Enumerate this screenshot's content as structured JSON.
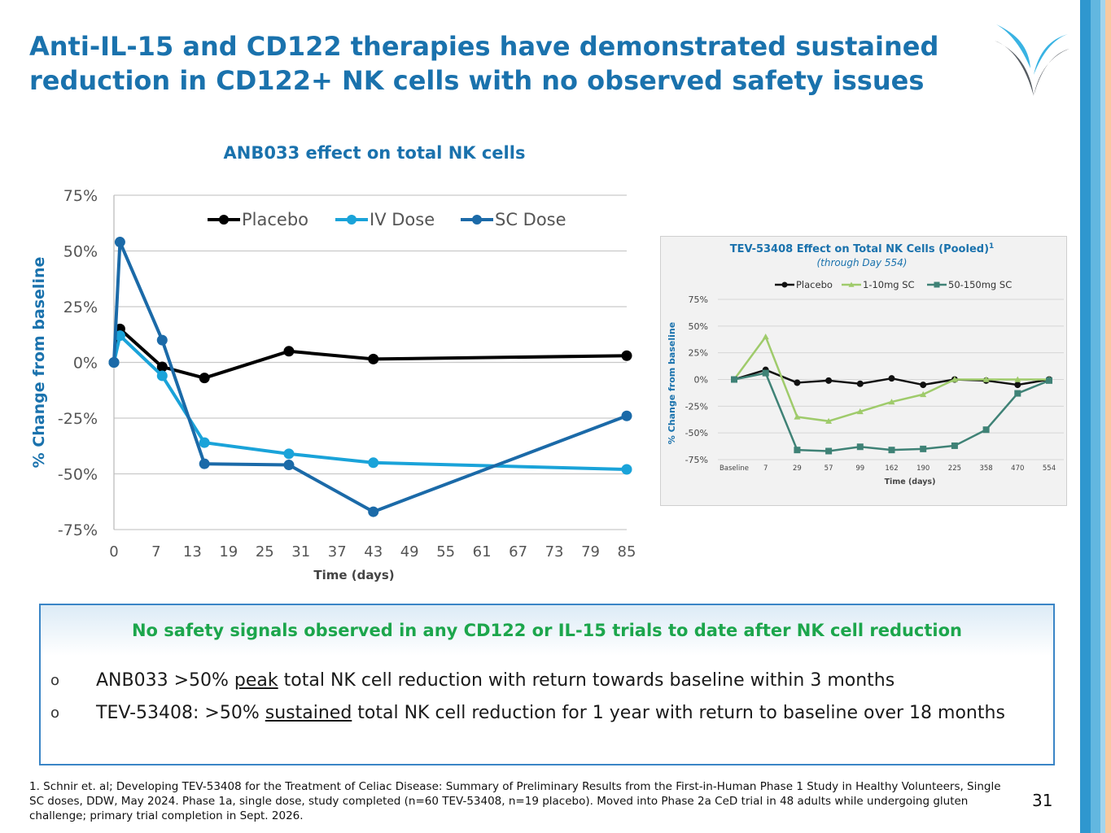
{
  "slide": {
    "title": "Anti-IL-15 and CD122 therapies have demonstrated sustained reduction in CD122+ NK cells with no observed safety issues",
    "page_number": "31",
    "accent_colors": [
      "#1a72ad",
      "#3a9fd6",
      "#8fcbe8",
      "#f8c9a0"
    ],
    "logo_icon": "stylized-v-logo-icon"
  },
  "chart_data": [
    {
      "type": "line",
      "title": "ANB033 effect on total NK cells",
      "xlabel": "Time (days)",
      "ylabel": "% Change from baseline",
      "xlim": [
        0,
        85
      ],
      "ylim": [
        -0.75,
        0.75
      ],
      "x_ticks": [
        0,
        7,
        13,
        19,
        25,
        31,
        37,
        43,
        49,
        55,
        61,
        67,
        73,
        79,
        85
      ],
      "y_ticks": [
        0.75,
        0.5,
        0.25,
        0,
        -0.25,
        -0.5,
        -0.75
      ],
      "y_tick_labels": [
        "75%",
        "50%",
        "25%",
        "0%",
        "-25%",
        "-50%",
        "-75%"
      ],
      "grid": "horizontal",
      "legend": "top",
      "series": [
        {
          "name": "Placebo",
          "color": "#000000",
          "x": [
            0,
            1,
            8,
            15,
            29,
            43,
            85
          ],
          "y": [
            0,
            0.15,
            -0.02,
            -0.07,
            0.05,
            0.015,
            0.03
          ]
        },
        {
          "name": "IV Dose",
          "color": "#1aa3d9",
          "x": [
            0,
            1,
            8,
            15,
            29,
            43,
            85
          ],
          "y": [
            0,
            0.12,
            -0.06,
            -0.36,
            -0.41,
            -0.45,
            -0.48
          ]
        },
        {
          "name": "SC Dose",
          "color": "#1b6aa8",
          "x": [
            0,
            1,
            8,
            15,
            29,
            43,
            85
          ],
          "y": [
            0,
            0.54,
            0.1,
            -0.455,
            -0.46,
            -0.67,
            -0.24
          ]
        }
      ]
    },
    {
      "type": "line",
      "title": "TEV-53408 Effect on Total NK Cells (Pooled)",
      "title_superscript": "1",
      "subtitle": "(through Day 554)",
      "xlabel": "Time (days)",
      "ylabel": "% Change from baseline",
      "categories": [
        "Baseline",
        "7",
        "29",
        "57",
        "99",
        "162",
        "190",
        "225",
        "358",
        "470",
        "554"
      ],
      "ylim": [
        -0.75,
        0.75
      ],
      "y_ticks": [
        0.75,
        0.5,
        0.25,
        0,
        -0.25,
        -0.5,
        -0.75
      ],
      "y_tick_labels": [
        "75%",
        "50%",
        "25%",
        "0%",
        "-25%",
        "-50%",
        "-75%"
      ],
      "grid": "horizontal",
      "legend": "top",
      "series": [
        {
          "name": "Placebo",
          "color": "#111111",
          "marker": "circle",
          "values": [
            0,
            0.09,
            -0.03,
            -0.01,
            -0.04,
            0.01,
            -0.05,
            0,
            -0.01,
            -0.05,
            0
          ]
        },
        {
          "name": "1-10mg SC",
          "color": "#9fcb6b",
          "marker": "triangle",
          "values": [
            0,
            0.4,
            -0.35,
            -0.39,
            -0.3,
            -0.21,
            -0.14,
            0,
            0,
            0,
            0
          ]
        },
        {
          "name": "50-150mg SC",
          "color": "#3f8276",
          "marker": "square",
          "values": [
            0,
            0.06,
            -0.66,
            -0.67,
            -0.63,
            -0.66,
            -0.65,
            -0.62,
            -0.47,
            -0.13,
            -0.01
          ]
        }
      ]
    }
  ],
  "callout": {
    "title": "No safety signals observed in any CD122 or IL-15 trials to date after NK cell reduction",
    "bullet_mark": "o",
    "bullet1": {
      "pre": "ANB033 >50% ",
      "emph": "peak",
      "post": " total NK cell reduction with return towards baseline within 3 months"
    },
    "bullet2": {
      "pre": "TEV-53408: >50% ",
      "emph": "sustained",
      "post": " total NK cell reduction for 1 year with return to baseline over 18 months"
    }
  },
  "footnote": "1. Schnir et. al; Developing TEV-53408 for the Treatment of Celiac Disease: Summary of Preliminary Results from the First-in-Human Phase 1 Study in Healthy Volunteers, Single SC doses, DDW, May 2024. Phase 1a, single dose, study completed (n=60 TEV-53408, n=19 placebo). Moved into Phase 2a CeD trial in 48 adults while undergoing gluten challenge; primary trial completion in Sept. 2026."
}
